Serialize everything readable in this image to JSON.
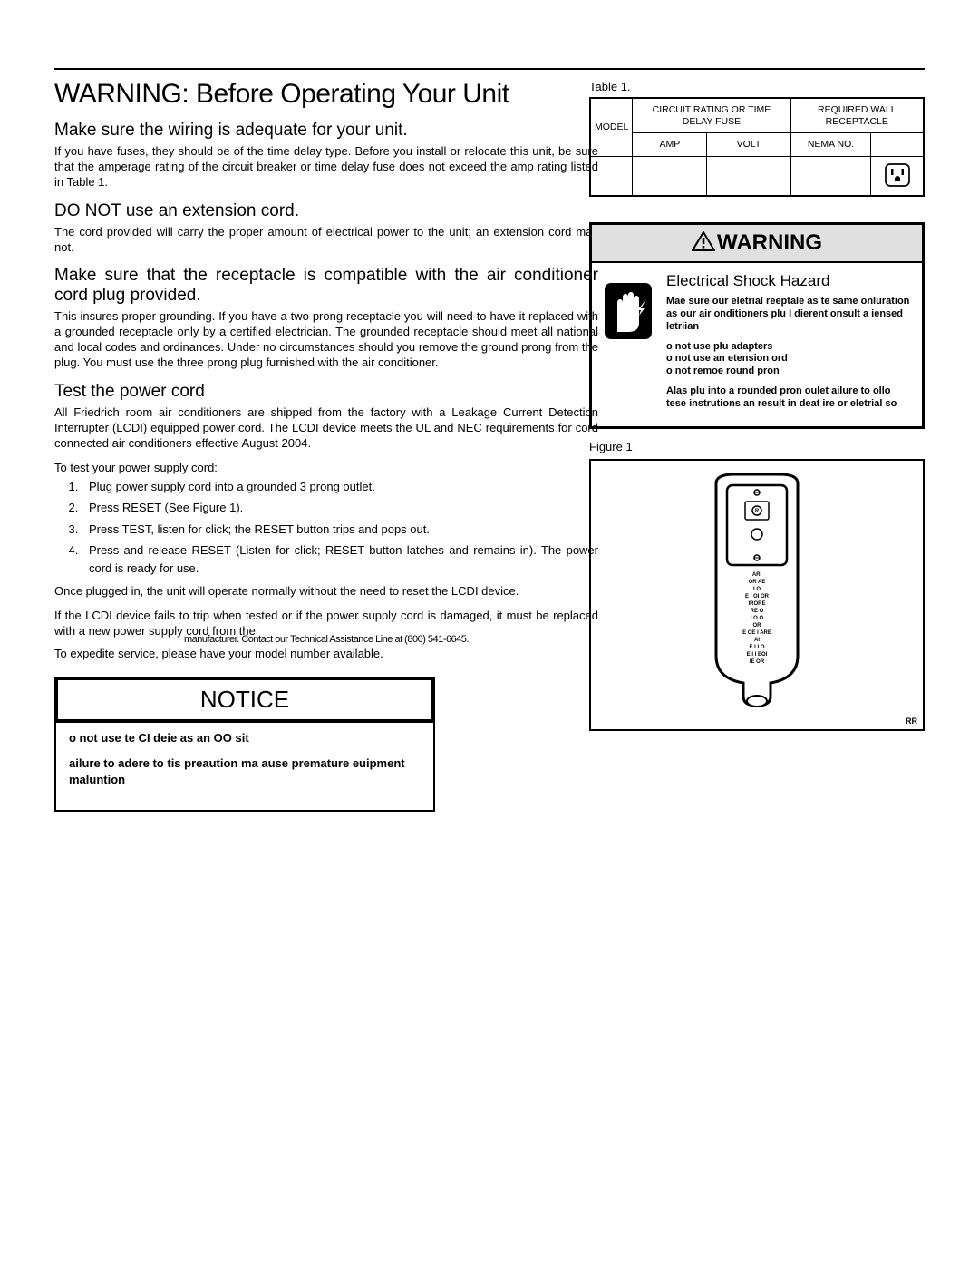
{
  "main_title": "WARNING: Before Operating Your Unit",
  "sections": {
    "wiring_head": "Make sure the wiring is adequate for your unit.",
    "wiring_body": "If you have fuses, they should be of the time delay type.  Before you install or relocate this unit, be sure that the amperage rating of the circuit breaker or time delay fuse does not exceed the amp rating listed in Table 1.",
    "ext_head": "DO NOT use an extension cord.",
    "ext_body": "The cord provided will carry the proper amount of electrical power to the unit; an extension cord may not.",
    "recept_head": "Make sure that the receptacle is compatible with the air conditioner cord plug provided.",
    "recept_body": "This insures proper grounding. If you have a two prong receptacle you will need to have it replaced with a grounded receptacle only by a certified electrician. The grounded receptacle should meet all national and local codes and ordinances. Under no circumstances should you remove the ground prong from the plug. You must use the three prong plug furnished with the air conditioner.",
    "test_head": "Test the power cord",
    "test_body1": "All Friedrich room air conditioners are shipped from the factory with a Leakage Current Detection Interrupter (LCDI) equipped power cord. The LCDI device meets the UL and NEC requirements for cord connected air conditioners effective August 2004.",
    "test_intro": "To test your power supply cord:",
    "steps": [
      "Plug power supply cord into a grounded 3 prong outlet.",
      "Press RESET (See Figure 1).",
      "Press TEST, listen for click; the RESET button trips and pops out.",
      "Press and release RESET (Listen for click; RESET button latches and remains in). The power cord is ready for use."
    ],
    "test_after1": "Once plugged in, the unit will operate normally without the need to reset the LCDI device.",
    "test_after2": "If the LCDI device fails to trip when tested or if the power supply cord is damaged, it must be replaced with a new power supply cord from the",
    "contact": "manufacturer. Contact our Technical Assistance Line at (800) 541-6645.",
    "expedite": "To expedite service, please have your model number available."
  },
  "notice": {
    "header": "NOTICE",
    "line1": "o not use te CI deie as an OO sit",
    "line2": "ailure to adere to tis preaution ma ause premature euipment maluntion"
  },
  "table": {
    "label": "Table 1.",
    "h_model": "MODEL",
    "h_circuit": "CIRCUIT RATING OR TIME DELAY FUSE",
    "h_wall": "REQUIRED WALL RECEPTACLE",
    "h_amp": "AMP",
    "h_volt": "VOLT",
    "h_nema": "NEMA NO."
  },
  "warning": {
    "header": "WARNING",
    "title": "Electrical Shock Hazard",
    "p1": "Mae sure our eletrial reeptale as te same onluration as our air onditioners plu I dierent onsult a iensed letriian",
    "p2": "o not use plu adapters",
    "p3": "o not use an etension ord",
    "p4": "o not remoe round pron",
    "p5": "Alas plu into a rounded  pron oulet ailure to ollo tese instrutions an result in deat ire or eletrial so"
  },
  "figure": {
    "label": "Figure 1",
    "corner": "RR",
    "plug_lines": [
      "ARI",
      "OR AE",
      "I O",
      "E I OI OR",
      "IRORE",
      "RE O",
      "I O O",
      "OR",
      "E OE I ARE",
      "AI",
      "E I I O",
      "E I I EOI",
      "IE OR"
    ]
  }
}
